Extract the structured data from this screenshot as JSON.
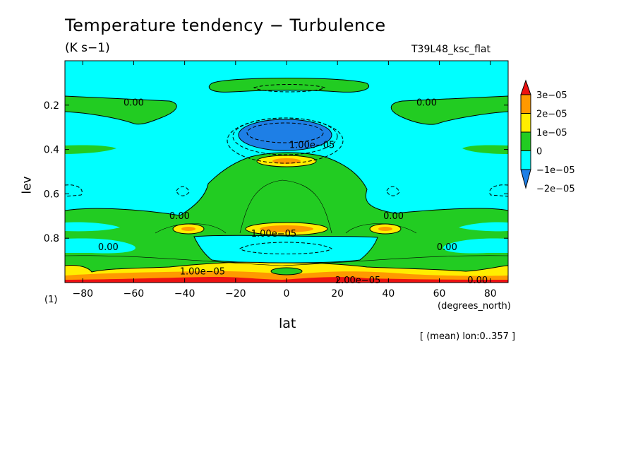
{
  "chart_data": {
    "type": "heatmap",
    "title": "Temperature tendency − Turbulence",
    "units_label": "(K s−1)",
    "run_name": "T39L48_ksc_flat",
    "xlabel": "lat",
    "x_units": "(degrees_north)",
    "ylabel": "lev",
    "y_scale_label": "(1)",
    "note": "[ (mean) lon:0..357 ]",
    "xlim": [
      -87,
      87
    ],
    "ylim": [
      1.0,
      0.0
    ],
    "x_ticks": [
      "−80",
      "−60",
      "−40",
      "−20",
      "0",
      "20",
      "40",
      "60",
      "80"
    ],
    "x_tick_values": [
      -80,
      -60,
      -40,
      -20,
      0,
      20,
      40,
      60,
      80
    ],
    "y_ticks": [
      "0.2",
      "0.4",
      "0.6",
      "0.8"
    ],
    "y_tick_values": [
      0.2,
      0.4,
      0.6,
      0.8
    ],
    "colorbar": {
      "labels": [
        "3e−05",
        "2e−05",
        "1e−05",
        "0",
        "−1e−05",
        "−2e−05"
      ],
      "colors": [
        "#1e7fe6",
        "#00ffff",
        "#22cc22",
        "#ffee00",
        "#ff9900",
        "#ee1111"
      ]
    },
    "contour_labels": [
      {
        "text": "0.00",
        "lat": -60,
        "lev": 0.19
      },
      {
        "text": "0.00",
        "lat": 55,
        "lev": 0.19
      },
      {
        "text": "1.00e−05",
        "lat": 10,
        "lev": 0.38
      },
      {
        "text": "0.00",
        "lat": -42,
        "lev": 0.7
      },
      {
        "text": "0.00",
        "lat": 42,
        "lev": 0.7
      },
      {
        "text": "0.00",
        "lat": -70,
        "lev": 0.84
      },
      {
        "text": "0.00",
        "lat": 63,
        "lev": 0.84
      },
      {
        "text": "1.00e−05",
        "lat": -5,
        "lev": 0.78
      },
      {
        "text": "1.00e−05",
        "lat": -33,
        "lev": 0.95
      },
      {
        "text": "2.00e−05",
        "lat": 28,
        "lev": 0.99
      },
      {
        "text": "0.00",
        "lat": 75,
        "lev": 0.99
      }
    ]
  }
}
